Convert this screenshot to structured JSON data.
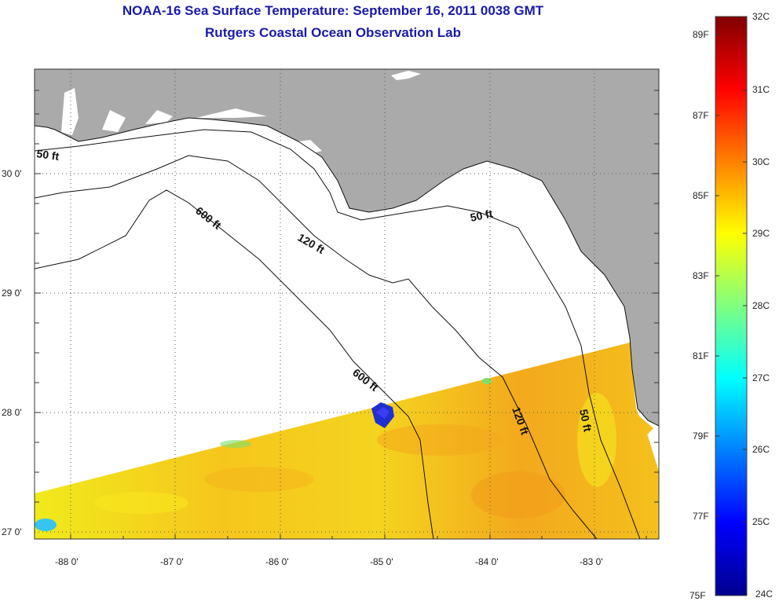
{
  "title_line1": "NOAA-16 Sea Surface Temperature:  September 16, 2011 0038 GMT",
  "title_line2": "Rutgers Coastal Ocean Observation Lab",
  "lat_ticks": [
    "30 0'",
    "29 0'",
    "28 0'",
    "27 0'"
  ],
  "lon_ticks": [
    "-88 0'",
    "-87 0'",
    "-86 0'",
    "-85 0'",
    "-84 0'",
    "-83 0'"
  ],
  "contour_labels": [
    {
      "text": "50 ft"
    },
    {
      "text": "600 ft"
    },
    {
      "text": "120 ft"
    },
    {
      "text": "50 ft"
    },
    {
      "text": "600 ft"
    },
    {
      "text": "120 ft"
    },
    {
      "text": "50 ft"
    }
  ],
  "colorbar": {
    "celsius": [
      "32C",
      "31C",
      "30C",
      "29C",
      "28C",
      "27C",
      "26C",
      "25C",
      "24C"
    ],
    "fahrenheit": [
      "89F",
      "87F",
      "85F",
      "83F",
      "81F",
      "79F",
      "77F",
      "75F"
    ],
    "colors": [
      "#00008f",
      "#0000ff",
      "#0080ff",
      "#00ffff",
      "#80ff80",
      "#ffff00",
      "#ff8000",
      "#ff0000",
      "#800000"
    ]
  },
  "colors": {
    "land": "#aaaaaa",
    "sst_warm": "#f7b21c",
    "sst_mid": "#f2e41c",
    "sst_cool": "#37c4ee",
    "cold_patch": "#1f2fd0",
    "title": "#1a1aa8"
  }
}
